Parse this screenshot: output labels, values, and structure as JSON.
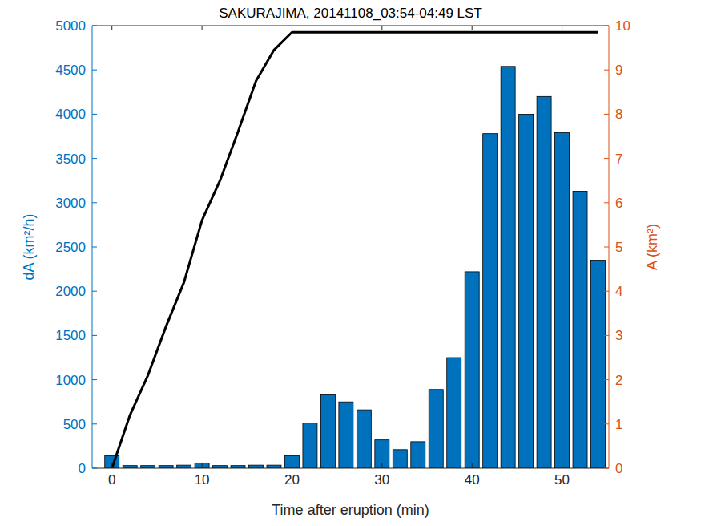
{
  "chart_data": {
    "type": "bar",
    "title": "SAKURAJIMA, 20141108_03:54-04:49 LST",
    "x_label": "Time after eruption (min)",
    "y_label": "dA (km²/h)",
    "y2_label": "A (km²)",
    "x": [
      0,
      2,
      4,
      6,
      8,
      10,
      12,
      14,
      16,
      18,
      20,
      22,
      24,
      26,
      28,
      30,
      32,
      34,
      36,
      38,
      40,
      42,
      44,
      46,
      48,
      50,
      52,
      54
    ],
    "series": [
      {
        "type": "bar",
        "color": "#0072bd",
        "values": [
          140,
          30,
          30,
          30,
          35,
          60,
          30,
          30,
          35,
          35,
          140,
          510,
          830,
          750,
          660,
          320,
          210,
          300,
          890,
          1250,
          2220,
          3780,
          4540,
          4000,
          4200,
          3790,
          3130,
          2350
        ]
      },
      {
        "type": "line",
        "axis": "y2",
        "color": "#000000",
        "line_style": "solid",
        "values": [
          0,
          1.2,
          2.1,
          3.2,
          4.2,
          5.6,
          6.5,
          7.6,
          8.75,
          9.45,
          9.85,
          9.85,
          9.85,
          9.85,
          9.85,
          9.85,
          9.85,
          9.85,
          9.85,
          9.85,
          9.85,
          9.85,
          9.85,
          9.85,
          9.85,
          9.85,
          9.85,
          9.85
        ]
      }
    ],
    "xlim": [
      -2.2,
      55.2
    ],
    "xticks": [
      0,
      10,
      20,
      30,
      40,
      50
    ],
    "ylim": [
      0,
      5000
    ],
    "yticks": [
      0,
      500,
      1000,
      1500,
      2000,
      2500,
      3000,
      3500,
      4000,
      4500,
      5000
    ],
    "y2lim": [
      0,
      10
    ],
    "y2ticks": [
      0,
      1,
      2,
      3,
      4,
      5,
      6,
      7,
      8,
      9,
      10
    ],
    "grid": false
  }
}
